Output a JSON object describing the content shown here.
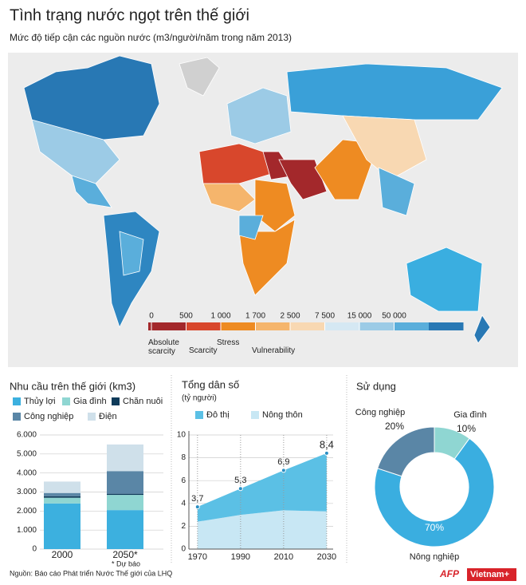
{
  "header": {
    "title": "Tình trạng nước ngọt trên thế giới",
    "subtitle": "Mức độ tiếp cận các nguồn nước (m3/người/năm trong năm 2013)"
  },
  "map_legend": {
    "ticks": [
      0,
      500,
      {
        "value": 1000,
        "label": "1 000"
      },
      {
        "value": 1700,
        "label": "1 700"
      },
      {
        "value": 2500,
        "label": "2 500"
      },
      {
        "value": 7500,
        "label": "7 500"
      },
      {
        "value": 15000,
        "label": "15 000"
      },
      {
        "value": 50000,
        "label": "50 000"
      }
    ],
    "colors": [
      "#a3282b",
      "#d8472c",
      "#ee8b22",
      "#f5b56c",
      "#f8d8b2",
      "#d5e8f3",
      "#9ccbe6",
      "#5aaedb",
      "#2878b4"
    ],
    "categories": [
      "Absolute scarcity",
      "Scarcity",
      "Stress",
      "Vulnerability"
    ]
  },
  "chart_data": [
    {
      "type": "bar",
      "title": "Nhu cầu trên thế giới (km3)",
      "categories": [
        "2000",
        "2050*"
      ],
      "series": [
        {
          "name": "Thủy lợi",
          "color": "#3cb0df",
          "values": [
            2400,
            2050
          ]
        },
        {
          "name": "Gia đình",
          "color": "#8fd6d2",
          "values": [
            300,
            800
          ]
        },
        {
          "name": "Chăn nuôi",
          "color": "#0f3b5a",
          "values": [
            80,
            60
          ]
        },
        {
          "name": "Công nghiệp",
          "color": "#5a86a6",
          "values": [
            170,
            1190
          ]
        },
        {
          "name": "Điện",
          "color": "#cfe0ea",
          "values": [
            600,
            1400
          ]
        }
      ],
      "ylim": [
        0,
        6000
      ],
      "yticks": [
        0,
        {
          "value": 1000,
          "label": "1.000"
        },
        {
          "value": 2000,
          "label": "2.000"
        },
        {
          "value": 3000,
          "label": "3.000"
        },
        {
          "value": 4000,
          "label": "4.000"
        },
        {
          "value": 5000,
          "label": "5.000"
        },
        {
          "value": 6000,
          "label": "6.000"
        }
      ],
      "grid": true
    },
    {
      "type": "area",
      "title": "Tổng dân số",
      "subtitle": "(tỷ người)",
      "x": [
        1970,
        1990,
        2010,
        2030
      ],
      "series": [
        {
          "name": "Nông thôn",
          "color": "#c8e7f4",
          "values": [
            2.4,
            3.0,
            3.4,
            3.3
          ]
        },
        {
          "name": "Đô thị",
          "color": "#5bc0e5",
          "values": [
            1.3,
            2.3,
            3.5,
            5.1
          ]
        }
      ],
      "total": {
        "values": [
          3.7,
          5.3,
          6.9,
          8.4
        ],
        "value_labels": [
          "3,7",
          "5,3",
          "6,9",
          "8,4"
        ]
      },
      "legend_order": [
        1,
        0
      ],
      "xlim": [
        1966,
        2033
      ],
      "xticks": [
        1970,
        1990,
        2010,
        2030
      ],
      "ylim": [
        0,
        10
      ],
      "yticks": [
        0,
        2,
        4,
        6,
        8,
        10
      ]
    },
    {
      "type": "pie",
      "title": "Sử dụng",
      "categories": [
        "Gia đình",
        "Nông nghiệp",
        "Công nghiệp"
      ],
      "values": [
        10,
        70,
        20
      ],
      "value_labels": [
        "10%",
        "70%",
        "20%"
      ],
      "colors": [
        "#8fd6d2",
        "#3aaee0",
        "#5a86a6"
      ]
    }
  ],
  "footnote": "* Dự báo",
  "source": "Nguồn: Báo cáo Phát triển Nước Thế giới của LHQ",
  "logos": [
    "AFP",
    "Vietnam+"
  ]
}
